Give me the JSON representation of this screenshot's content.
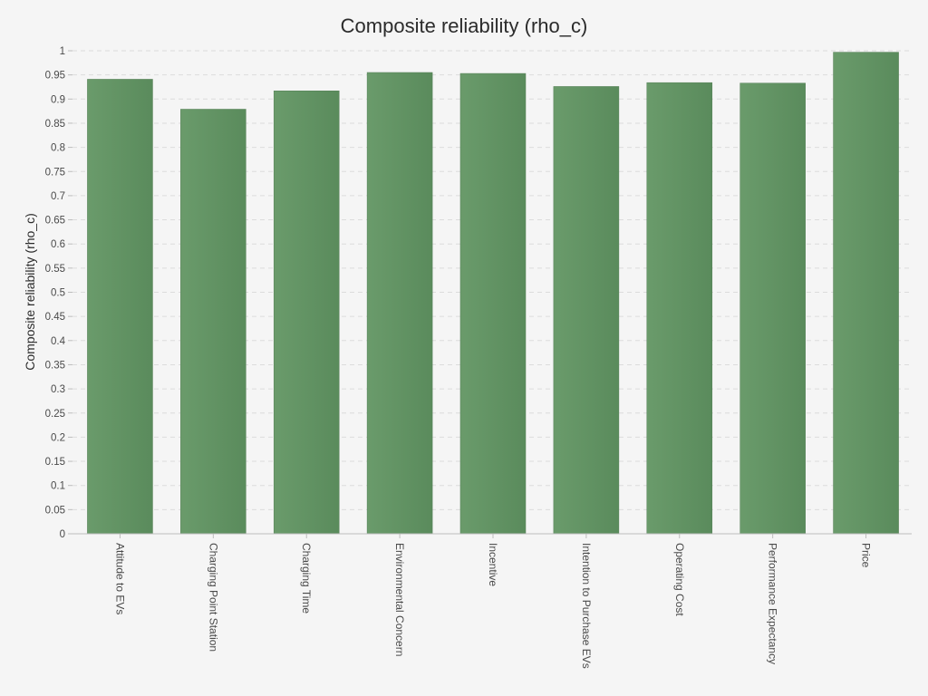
{
  "chart_data": {
    "type": "bar",
    "title": "Composite reliability (rho_c)",
    "xlabel": "",
    "ylabel": "Composite reliability (rho_c)",
    "ylim": [
      0,
      1
    ],
    "yticks": [
      "0",
      "0.05",
      "0.1",
      "0.15",
      "0.2",
      "0.25",
      "0.3",
      "0.35",
      "0.4",
      "0.45",
      "0.5",
      "0.55",
      "0.6",
      "0.65",
      "0.7",
      "0.75",
      "0.8",
      "0.85",
      "0.9",
      "0.95",
      "1"
    ],
    "grid": true,
    "categories": [
      "Attitude to EVs",
      "Charging Point Station",
      "Charging Time",
      "Environmental Concern",
      "Incentive",
      "Intention to Purchase EVs",
      "Operating Cost",
      "Performance Expectancy",
      "Price"
    ],
    "values": [
      0.941,
      0.879,
      0.917,
      0.955,
      0.953,
      0.926,
      0.934,
      0.933,
      0.997
    ],
    "bar_color": "#5f9160",
    "background": "#f5f5f5"
  }
}
